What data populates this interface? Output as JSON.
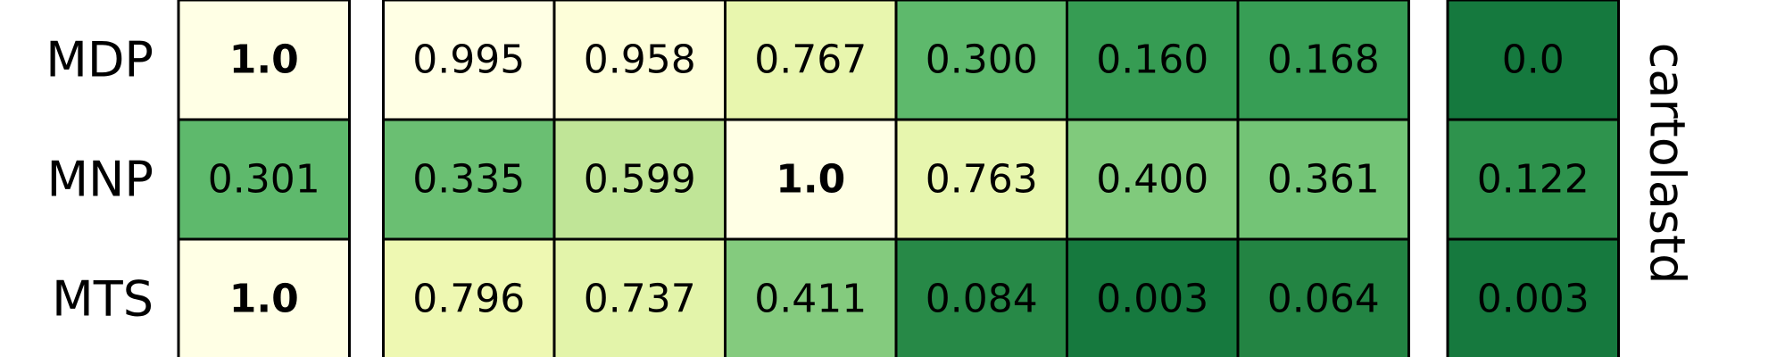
{
  "chart_data": {
    "type": "heatmap",
    "title": "",
    "side_label": "cartolastd",
    "rows": [
      "MDP",
      "MNP",
      "MTS"
    ],
    "colormap": "YlGn",
    "value_range": [
      0,
      1
    ],
    "column_groups": [
      1,
      6,
      1
    ],
    "values": [
      [
        1.0,
        0.995,
        0.958,
        0.767,
        0.3,
        0.16,
        0.168,
        0.0
      ],
      [
        0.301,
        0.335,
        0.599,
        1.0,
        0.763,
        0.4,
        0.361,
        0.122
      ],
      [
        1.0,
        0.796,
        0.737,
        0.411,
        0.084,
        0.003,
        0.064,
        0.003
      ]
    ],
    "labels": [
      [
        "1.0",
        "0.995",
        "0.958",
        "0.767",
        "0.300",
        "0.160",
        "0.168",
        "0.0"
      ],
      [
        "0.301",
        "0.335",
        "0.599",
        "1.0",
        "0.763",
        "0.400",
        "0.361",
        "0.122"
      ],
      [
        "1.0",
        "0.796",
        "0.737",
        "0.411",
        "0.084",
        "0.003",
        "0.064",
        "0.003"
      ]
    ],
    "bold": [
      [
        true,
        false,
        false,
        false,
        false,
        false,
        false,
        false
      ],
      [
        false,
        false,
        false,
        true,
        false,
        false,
        false,
        false
      ],
      [
        true,
        false,
        false,
        false,
        false,
        false,
        false,
        false
      ]
    ]
  }
}
